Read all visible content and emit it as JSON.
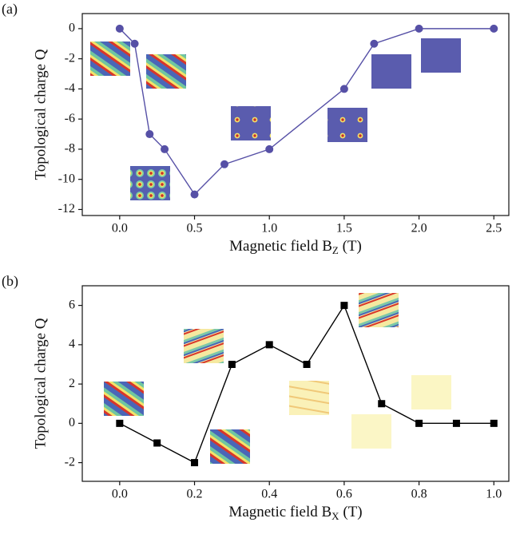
{
  "chart_data": [
    {
      "type": "line",
      "panel_label": "(a)",
      "marker": "circle",
      "color": "#5650a6",
      "x_label": {
        "text": "Magnetic field B",
        "subscript": "Z",
        "suffix": " (T)"
      },
      "y_label": "Topological charge Q",
      "x": [
        0,
        0.1,
        0.2,
        0.3,
        0.5,
        0.7,
        1.0,
        1.5,
        1.7,
        2.0,
        2.5
      ],
      "values": [
        0,
        -1,
        -7,
        -8,
        -11,
        -9,
        -8,
        -4,
        -1,
        0,
        0
      ],
      "xlim": [
        -0.25,
        2.6
      ],
      "ylim": [
        -12.4,
        1
      ],
      "xticks": [
        {
          "value": 0,
          "label": "0.0"
        },
        {
          "value": 0.5,
          "label": "0.5"
        },
        {
          "value": 1,
          "label": "1.0"
        },
        {
          "value": 1.5,
          "label": "1.5"
        },
        {
          "value": 2,
          "label": "2.0"
        },
        {
          "value": 2.5,
          "label": "2.5"
        }
      ],
      "yticks": [
        0,
        -2,
        -4,
        -6,
        -8,
        -10,
        -12
      ]
    },
    {
      "type": "line",
      "panel_label": "(b)",
      "marker": "square",
      "color": "#000000",
      "x_label": {
        "text": "Magnetic field B",
        "subscript": "X",
        "suffix": " (T)"
      },
      "y_label": "Topological charge Q",
      "x": [
        0,
        0.1,
        0.2,
        0.3,
        0.4,
        0.5,
        0.6,
        0.7,
        0.8,
        0.9,
        1.0
      ],
      "values": [
        0,
        -1,
        -2,
        3,
        4,
        3,
        6,
        1,
        0,
        0,
        0
      ],
      "xlim": [
        -0.1,
        1.04
      ],
      "ylim": [
        -2.95,
        7
      ],
      "xticks": [
        {
          "value": 0,
          "label": "0.0"
        },
        {
          "value": 0.2,
          "label": "0.2"
        },
        {
          "value": 0.4,
          "label": "0.4"
        },
        {
          "value": 0.6,
          "label": "0.6"
        },
        {
          "value": 0.8,
          "label": "0.8"
        },
        {
          "value": 1,
          "label": "1.0"
        }
      ],
      "yticks": [
        -2,
        0,
        2,
        4,
        6
      ]
    }
  ]
}
